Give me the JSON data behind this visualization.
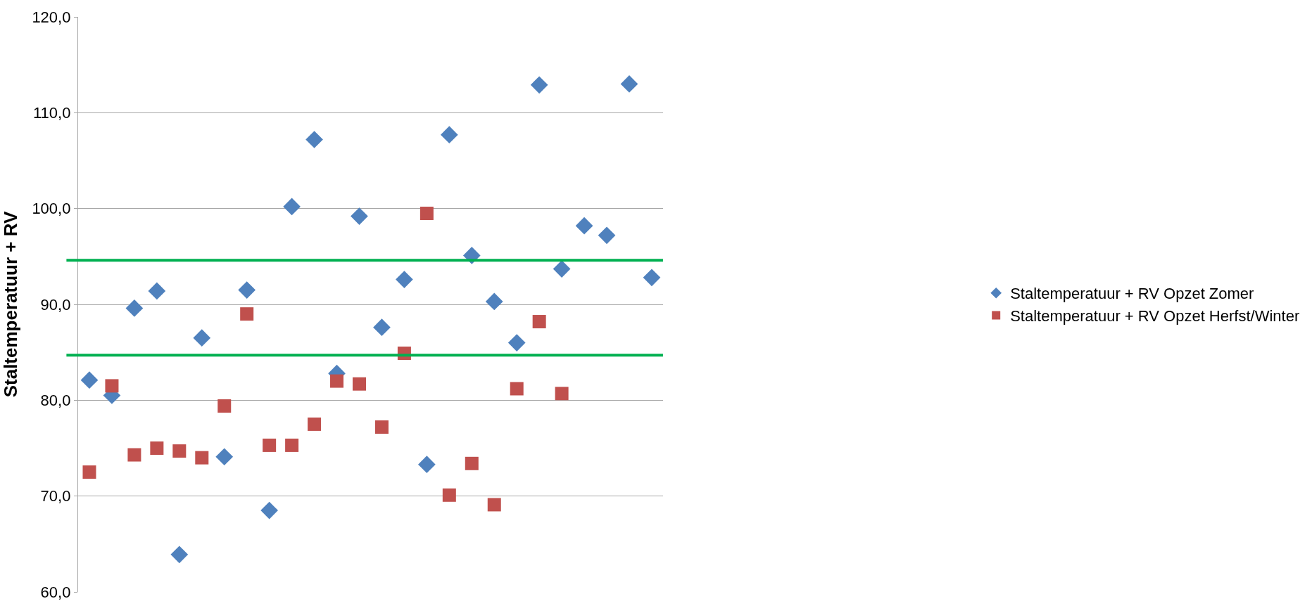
{
  "chart_data": {
    "type": "scatter",
    "ylabel": "Staltemperatuur + RV",
    "categories": [
      null,
      null,
      null,
      null,
      null,
      null,
      null,
      null,
      null,
      null,
      null,
      null,
      null,
      null,
      null,
      null,
      null,
      null,
      null,
      null,
      null,
      null,
      null,
      null,
      null,
      null
    ],
    "series": [
      {
        "name": "Staltemperatuur + RV Opzet Zomer",
        "color": "#4f81bd",
        "marker": "diamond",
        "values": [
          82.1,
          80.5,
          89.6,
          91.4,
          63.9,
          86.5,
          74.1,
          91.5,
          68.5,
          100.2,
          107.2,
          82.8,
          99.2,
          87.6,
          92.6,
          73.3,
          107.7,
          95.1,
          90.3,
          86.0,
          112.9,
          93.7,
          98.2,
          97.2,
          113.0,
          92.8
        ]
      },
      {
        "name": "Staltemperatuur + RV Opzet Herfst/Winter",
        "color": "#c0504d",
        "marker": "square",
        "values": [
          72.5,
          81.5,
          74.3,
          75.0,
          74.7,
          74.0,
          79.4,
          89.0,
          75.3,
          75.3,
          77.5,
          82.0,
          81.7,
          77.2,
          84.9,
          99.5,
          70.1,
          73.4,
          69.1,
          81.2,
          88.2,
          80.7,
          null,
          null,
          null,
          null
        ]
      }
    ],
    "ylim": [
      60,
      120
    ],
    "yticks": [
      {
        "value": 60,
        "label": "60,0"
      },
      {
        "value": 70,
        "label": "70,0"
      },
      {
        "value": 80,
        "label": "80,0"
      },
      {
        "value": 90,
        "label": "90,0"
      },
      {
        "value": 100,
        "label": "100,0"
      },
      {
        "value": 110,
        "label": "110,0"
      },
      {
        "value": 120,
        "label": "120,0"
      }
    ],
    "ref_lines": [
      {
        "axis": "y",
        "value": 94.6,
        "color": "#00b050"
      },
      {
        "axis": "y",
        "value": 84.7,
        "color": "#00b050"
      }
    ],
    "grid": "y",
    "legend": "right",
    "tick_labels": "y"
  }
}
